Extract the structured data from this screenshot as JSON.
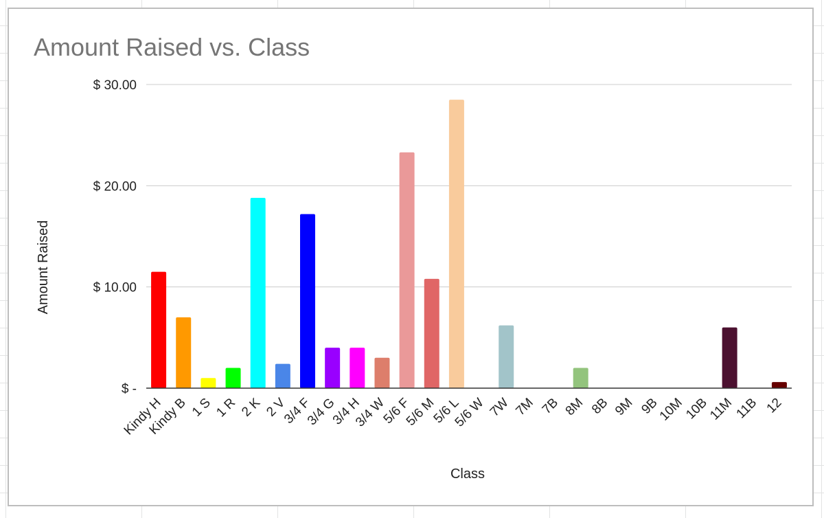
{
  "chart_data": {
    "type": "bar",
    "title": "Amount Raised vs. Class",
    "xlabel": "Class",
    "ylabel": "Amount Raised",
    "ylim": [
      0,
      30
    ],
    "yticks": [
      {
        "value": 0,
        "label": "$ -"
      },
      {
        "value": 10,
        "label": "$ 10.00"
      },
      {
        "value": 20,
        "label": "$ 20.00"
      },
      {
        "value": 30,
        "label": "$ 30.00"
      }
    ],
    "grid": true,
    "legend": "none",
    "categories": [
      "Kindy H",
      "Kindy B",
      "1 S",
      "1 R",
      "2 K",
      "2 V",
      "3/4 F",
      "3/4 G",
      "3/4 H",
      "3/4 W",
      "5/6 F",
      "5/6 M",
      "5/6 L",
      "5/6 W",
      "7W",
      "7M",
      "7B",
      "8M",
      "8B",
      "9M",
      "9B",
      "10M",
      "10B",
      "11M",
      "11B",
      "12"
    ],
    "values": [
      11.5,
      7.0,
      1.0,
      2.0,
      18.8,
      2.4,
      17.2,
      4.0,
      4.0,
      3.0,
      23.3,
      10.8,
      28.5,
      0,
      6.2,
      0,
      0,
      2.0,
      0,
      0,
      0,
      0,
      0,
      6.0,
      0,
      0.6
    ],
    "colors": [
      "#ff0000",
      "#ff9900",
      "#ffff00",
      "#00ff00",
      "#00ffff",
      "#4a86e8",
      "#0000ff",
      "#9900ff",
      "#ff00ff",
      "#dd7e6b",
      "#ea9999",
      "#e06666",
      "#f9cb9c",
      "#ffffff",
      "#a2c4c9",
      "#ffffff",
      "#ffffff",
      "#93c47d",
      "#ffffff",
      "#ffffff",
      "#ffffff",
      "#ffffff",
      "#ffffff",
      "#4c1130",
      "#ffffff",
      "#660000"
    ]
  }
}
